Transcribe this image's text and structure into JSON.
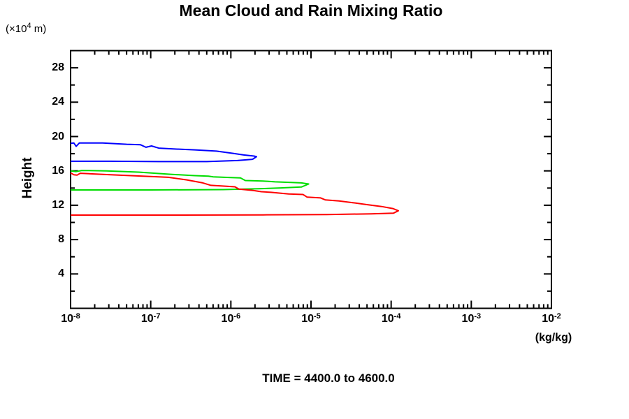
{
  "chart_data": {
    "type": "line",
    "title": "Mean Cloud and Rain Mixing Ratio",
    "y_axis_title": "Height",
    "y_unit": {
      "prefix": "(×10",
      "sup": "4",
      "suffix": " m)"
    },
    "x_unit": "(kg/kg)",
    "caption": "TIME = 4400.0 to 4600.0",
    "x_scale": "log10",
    "x_tick_base": "10",
    "x_tick_exponents": [
      -8,
      -7,
      -6,
      -5,
      -4,
      -3,
      -2
    ],
    "x_range_exponents": [
      -8,
      -2
    ],
    "y_range": [
      0,
      30
    ],
    "y_major_ticks": [
      4,
      8,
      12,
      16,
      20,
      24,
      28
    ],
    "y_minor_ticks": [
      2,
      6,
      10,
      14,
      18,
      22,
      26,
      30
    ],
    "grid": false,
    "legend": false,
    "axis_color": "#000000",
    "series": [
      {
        "name": "blue-contour",
        "color": "#0000ff",
        "points": [
          [
            -8.0,
            19.2
          ],
          [
            -7.96,
            19.25
          ],
          [
            -7.93,
            18.85
          ],
          [
            -7.89,
            19.25
          ],
          [
            -7.6,
            19.25
          ],
          [
            -7.3,
            19.1
          ],
          [
            -7.13,
            19.05
          ],
          [
            -7.06,
            18.75
          ],
          [
            -6.99,
            18.9
          ],
          [
            -6.9,
            18.65
          ],
          [
            -6.72,
            18.55
          ],
          [
            -6.45,
            18.45
          ],
          [
            -6.18,
            18.3
          ],
          [
            -5.98,
            18.05
          ],
          [
            -5.84,
            17.85
          ],
          [
            -5.71,
            17.72
          ],
          [
            -5.68,
            17.65
          ],
          [
            -5.73,
            17.35
          ],
          [
            -5.92,
            17.2
          ],
          [
            -6.3,
            17.08
          ],
          [
            -6.9,
            17.08
          ],
          [
            -7.5,
            17.12
          ],
          [
            -8.0,
            17.12
          ]
        ]
      },
      {
        "name": "green-contour",
        "color": "#00dd00",
        "points": [
          [
            -8.0,
            16.0
          ],
          [
            -7.93,
            15.92
          ],
          [
            -7.86,
            16.05
          ],
          [
            -7.55,
            16.0
          ],
          [
            -7.15,
            15.85
          ],
          [
            -6.75,
            15.6
          ],
          [
            -6.45,
            15.45
          ],
          [
            -6.28,
            15.38
          ],
          [
            -6.22,
            15.3
          ],
          [
            -6.0,
            15.22
          ],
          [
            -5.88,
            15.18
          ],
          [
            -5.82,
            14.88
          ],
          [
            -5.6,
            14.82
          ],
          [
            -5.45,
            14.72
          ],
          [
            -5.25,
            14.65
          ],
          [
            -5.12,
            14.6
          ],
          [
            -5.03,
            14.47
          ],
          [
            -5.12,
            14.12
          ],
          [
            -5.38,
            14.02
          ],
          [
            -5.65,
            13.92
          ],
          [
            -6.1,
            13.82
          ],
          [
            -7.0,
            13.78
          ],
          [
            -8.0,
            13.78
          ]
        ]
      },
      {
        "name": "red-contour",
        "color": "#ff0000",
        "points": [
          [
            -8.0,
            15.77
          ],
          [
            -7.96,
            15.55
          ],
          [
            -7.92,
            15.5
          ],
          [
            -7.88,
            15.72
          ],
          [
            -7.5,
            15.55
          ],
          [
            -7.1,
            15.38
          ],
          [
            -6.78,
            15.25
          ],
          [
            -6.55,
            14.95
          ],
          [
            -6.35,
            14.6
          ],
          [
            -6.25,
            14.32
          ],
          [
            -6.05,
            14.2
          ],
          [
            -5.95,
            14.15
          ],
          [
            -5.9,
            13.88
          ],
          [
            -5.72,
            13.72
          ],
          [
            -5.62,
            13.58
          ],
          [
            -5.5,
            13.5
          ],
          [
            -5.28,
            13.32
          ],
          [
            -5.1,
            13.25
          ],
          [
            -5.05,
            12.95
          ],
          [
            -4.88,
            12.85
          ],
          [
            -4.82,
            12.62
          ],
          [
            -4.65,
            12.5
          ],
          [
            -4.48,
            12.3
          ],
          [
            -4.32,
            12.1
          ],
          [
            -4.12,
            11.85
          ],
          [
            -3.98,
            11.62
          ],
          [
            -3.91,
            11.36
          ],
          [
            -3.97,
            11.08
          ],
          [
            -4.25,
            11.0
          ],
          [
            -4.8,
            10.92
          ],
          [
            -5.6,
            10.88
          ],
          [
            -6.6,
            10.85
          ],
          [
            -8.0,
            10.85
          ]
        ]
      }
    ]
  }
}
